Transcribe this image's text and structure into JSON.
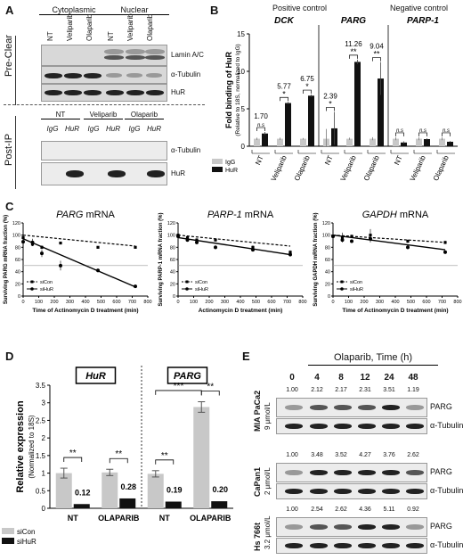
{
  "panels": {
    "A": "A",
    "B": "B",
    "C": "C",
    "D": "D",
    "E": "E"
  },
  "panelA": {
    "fraction_headers": [
      "Cytoplasmic",
      "Nuclear"
    ],
    "lanes_preclear": [
      "NT",
      "Veliparib",
      "Olaparib",
      "NT",
      "Veliparib",
      "Olaparib"
    ],
    "side_preclear": "Pre-Clear",
    "side_postip": "Post-IP",
    "blot_labels_preclear": [
      "Lamin A/C",
      "α-Tubulin",
      "HuR"
    ],
    "postip_groups": [
      "NT",
      "Veliparib",
      "Olaparib"
    ],
    "postip_lanes": [
      "IgG",
      "HuR",
      "IgG",
      "HuR",
      "IgG",
      "HuR"
    ],
    "blot_labels_postip": [
      "α-Tubulin",
      "HuR"
    ]
  },
  "panelB": {
    "headers": {
      "positive": "Positive control",
      "negative": "Negative control"
    },
    "genes": [
      "DCK",
      "PARG",
      "PARP-1"
    ],
    "ylabel": "Fold binding of HuR",
    "ylabel_sub": "(Relative to 18S, normalized to IgG)",
    "yticks": [
      "0",
      "5",
      "10",
      "15"
    ],
    "legend": [
      "IgG",
      "HuR"
    ],
    "fold_labels": [
      "1.70",
      "5.77",
      "6.75",
      "2.39",
      "11.26",
      "9.04"
    ],
    "sig": [
      "n.s",
      "*",
      "*",
      "*",
      "**",
      "**",
      "n.s",
      "n.s",
      "n.s"
    ],
    "xcats": [
      "NT",
      "Veliparib",
      "Olaparib"
    ]
  },
  "panelC": {
    "titles": [
      {
        "gene": "PARG",
        "suffix": " mRNA"
      },
      {
        "gene": "PARP-1",
        "suffix": " mRNA"
      },
      {
        "gene": "GAPDH",
        "suffix": " mRNA"
      }
    ],
    "ylabels": [
      "Surviving PARG mRNA fraction (%)",
      "Surviving PARP-1 mRNA fraction (%)",
      "Surviving GAPDH mRNA fraction (%)"
    ],
    "xlabels": [
      "Time of Actinomycin D treatment (min)",
      "Actinomycin D treatment (min)",
      "Time of Actinomycin D treatment (min)"
    ],
    "yticks": [
      "0",
      "20",
      "40",
      "60",
      "80",
      "100",
      "120"
    ],
    "xticks": [
      "0",
      "100",
      "200",
      "300",
      "400",
      "500",
      "600",
      "700",
      "800"
    ],
    "legend": [
      "siCon",
      "siHuR"
    ]
  },
  "panelD": {
    "gene_boxes": [
      "HuR",
      "PARG"
    ],
    "ylabel": "Relative expression",
    "ylabel_sub": "(Normalized to 18S)",
    "yticks": [
      "0",
      "0.5",
      "1",
      "1.5",
      "2",
      "2.5",
      "3",
      "3.5"
    ],
    "value_labels": [
      "0.12",
      "0.28",
      "0.19",
      "0.20"
    ],
    "sig": [
      "**",
      "**",
      "**",
      "**",
      "***"
    ],
    "xcats": [
      "NT",
      "OLAPARIB",
      "NT",
      "OLAPARIB"
    ],
    "legend": [
      "siCon",
      "siHuR"
    ]
  },
  "panelE": {
    "title": "Olaparib, Time (h)",
    "times": [
      "0",
      "4",
      "8",
      "12",
      "24",
      "48"
    ],
    "cell_lines": [
      {
        "name": "MIA PaCa2",
        "dose": "9 μmol/L",
        "values": [
          "1.00",
          "2.12",
          "2.17",
          "2.31",
          "3.51",
          "1.19"
        ]
      },
      {
        "name": "CaPan1",
        "dose": "2 μmol/L",
        "values": [
          "1.00",
          "3.48",
          "3.52",
          "4.27",
          "3.76",
          "2.62"
        ]
      },
      {
        "name": "Hs 766t",
        "dose": "3.2 μmol/L",
        "values": [
          "1.00",
          "2.54",
          "2.62",
          "4.36",
          "5.11",
          "0.92"
        ]
      }
    ],
    "blot_labels": [
      "PARG",
      "α-Tubulin"
    ]
  },
  "chart_data": [
    {
      "type": "bar",
      "panel": "B",
      "categories": [
        "DCK NT",
        "DCK Veliparib",
        "DCK Olaparib",
        "PARG NT",
        "PARG Veliparib",
        "PARG Olaparib",
        "PARP-1 NT",
        "PARP-1 Veliparib",
        "PARP-1 Olaparib"
      ],
      "series": [
        {
          "name": "IgG",
          "values": [
            1.0,
            1.0,
            1.0,
            1.0,
            1.0,
            1.0,
            1.0,
            1.0,
            1.0
          ]
        },
        {
          "name": "HuR",
          "values": [
            1.7,
            5.77,
            6.75,
            2.39,
            11.26,
            9.04,
            0.5,
            0.95,
            0.6
          ]
        }
      ],
      "errors": {
        "IgG": [
          0.15,
          0.15,
          0.1,
          1.3,
          0.15,
          0.2,
          0.2,
          0.2,
          0.2
        ],
        "HuR": [
          0.2,
          0.15,
          0.15,
          2.2,
          0.3,
          2.2,
          0.15,
          0.1,
          0.1
        ]
      },
      "ylim": [
        0,
        15
      ],
      "colors": {
        "IgG": "#c8c8c8",
        "HuR": "#111111"
      }
    },
    {
      "type": "line",
      "panel": "C-PARG",
      "xlim": [
        0,
        800
      ],
      "ylim": [
        0,
        120
      ],
      "series": [
        {
          "name": "siCon",
          "x": [
            0,
            60,
            120,
            240,
            480,
            720
          ],
          "y": [
            96,
            85,
            80,
            87,
            80,
            80
          ],
          "err": [
            3,
            3,
            3,
            2,
            2,
            2
          ]
        },
        {
          "name": "siHuR",
          "x": [
            0,
            60,
            120,
            240,
            480,
            720
          ],
          "y": [
            89,
            88,
            70,
            50,
            42,
            16
          ],
          "err": [
            4,
            6,
            6,
            8,
            3,
            2
          ]
        }
      ],
      "fit": {
        "siCon": [
          100,
          82
        ],
        "siHuR": [
          94,
          15
        ]
      },
      "reference_y": 50
    },
    {
      "type": "line",
      "panel": "C-PARP-1",
      "xlim": [
        0,
        800
      ],
      "ylim": [
        0,
        120
      ],
      "series": [
        {
          "name": "siCon",
          "x": [
            0,
            60,
            120,
            240,
            480,
            720
          ],
          "y": [
            100,
            96,
            92,
            92,
            80,
            72
          ],
          "err": [
            4,
            3,
            3,
            3,
            3,
            3
          ]
        },
        {
          "name": "siHuR",
          "x": [
            0,
            60,
            120,
            240,
            480,
            720
          ],
          "y": [
            98,
            92,
            88,
            80,
            76,
            68
          ],
          "err": [
            4,
            3,
            3,
            3,
            3,
            3
          ]
        }
      ],
      "fit": {
        "siCon": [
          100,
          82
        ],
        "siHuR": [
          96,
          68
        ]
      },
      "reference_y": 50
    },
    {
      "type": "line",
      "panel": "C-GAPDH",
      "xlim": [
        0,
        800
      ],
      "ylim": [
        0,
        120
      ],
      "series": [
        {
          "name": "siCon",
          "x": [
            0,
            60,
            120,
            240,
            480,
            720
          ],
          "y": [
            98,
            96,
            98,
            100,
            90,
            88
          ],
          "err": [
            4,
            8,
            3,
            10,
            3,
            3
          ]
        },
        {
          "name": "siHuR",
          "x": [
            0,
            60,
            120,
            240,
            480,
            720
          ],
          "y": [
            98,
            92,
            90,
            94,
            80,
            72
          ],
          "err": [
            4,
            3,
            3,
            6,
            3,
            3
          ]
        }
      ],
      "fit": {
        "siCon": [
          100,
          88
        ],
        "siHuR": [
          100,
          76
        ]
      },
      "reference_y": 50
    },
    {
      "type": "bar",
      "panel": "D",
      "categories": [
        "HuR NT",
        "HuR OLAPARIB",
        "PARG NT",
        "PARG OLAPARIB"
      ],
      "series": [
        {
          "name": "siCon",
          "values": [
            1.0,
            1.02,
            0.98,
            2.88
          ]
        },
        {
          "name": "siHuR",
          "values": [
            0.12,
            0.28,
            0.19,
            0.2
          ]
        }
      ],
      "errors": {
        "siCon": [
          0.14,
          0.09,
          0.09,
          0.15
        ],
        "siHuR": [
          0.02,
          0.03,
          0.03,
          0.03
        ]
      },
      "ylim": [
        0,
        3.5
      ],
      "colors": {
        "siCon": "#c8c8c8",
        "siHuR": "#111111"
      }
    }
  ]
}
